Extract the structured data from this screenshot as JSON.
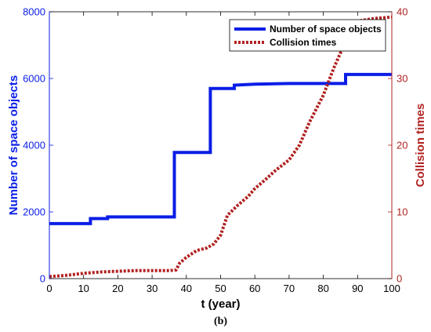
{
  "chart_data": {
    "type": "line",
    "caption": "(b)",
    "xlabel": "t (year)",
    "xlim": [
      0,
      100
    ],
    "xticks": [
      0,
      10,
      20,
      30,
      40,
      50,
      60,
      70,
      80,
      90,
      100
    ],
    "y_left": {
      "label": "Number of space objects",
      "lim": [
        0,
        8000
      ],
      "ticks": [
        0,
        2000,
        4000,
        6000,
        8000
      ],
      "color": "#0a1ee6"
    },
    "y_right": {
      "label": "Collision times",
      "lim": [
        0,
        40
      ],
      "ticks": [
        0,
        10,
        20,
        30,
        40
      ],
      "color": "#b22222"
    },
    "legend_position": "top-right",
    "series": [
      {
        "name": "Number of space objects",
        "axis": "left",
        "style": "solid-step",
        "color": "#0a1ee6",
        "x": [
          0,
          12,
          12,
          17,
          17,
          36.5,
          36.5,
          47,
          47,
          54,
          54,
          60,
          70,
          80,
          86.5,
          86.5,
          100
        ],
        "y": [
          1650,
          1650,
          1800,
          1800,
          1850,
          1850,
          3780,
          3780,
          5700,
          5700,
          5800,
          5830,
          5850,
          5850,
          5850,
          6120,
          6120
        ]
      },
      {
        "name": "Collision times",
        "axis": "right",
        "style": "dotted",
        "color": "#b22222",
        "x": [
          0,
          5,
          10,
          15,
          20,
          25,
          30,
          35,
          37,
          38,
          40,
          43,
          46,
          48,
          50,
          52,
          55,
          58,
          60,
          63,
          66,
          70,
          73,
          76,
          80,
          83,
          86,
          88,
          91,
          95,
          100
        ],
        "y": [
          0.3,
          0.5,
          0.8,
          1.0,
          1.1,
          1.2,
          1.2,
          1.2,
          1.3,
          2.3,
          3.2,
          4.2,
          4.6,
          5.2,
          6.5,
          9.5,
          11.0,
          12.3,
          13.5,
          14.8,
          16.2,
          17.8,
          20.0,
          23.5,
          27.5,
          31.5,
          35.0,
          37.5,
          38.7,
          39.0,
          39.2
        ]
      }
    ]
  }
}
